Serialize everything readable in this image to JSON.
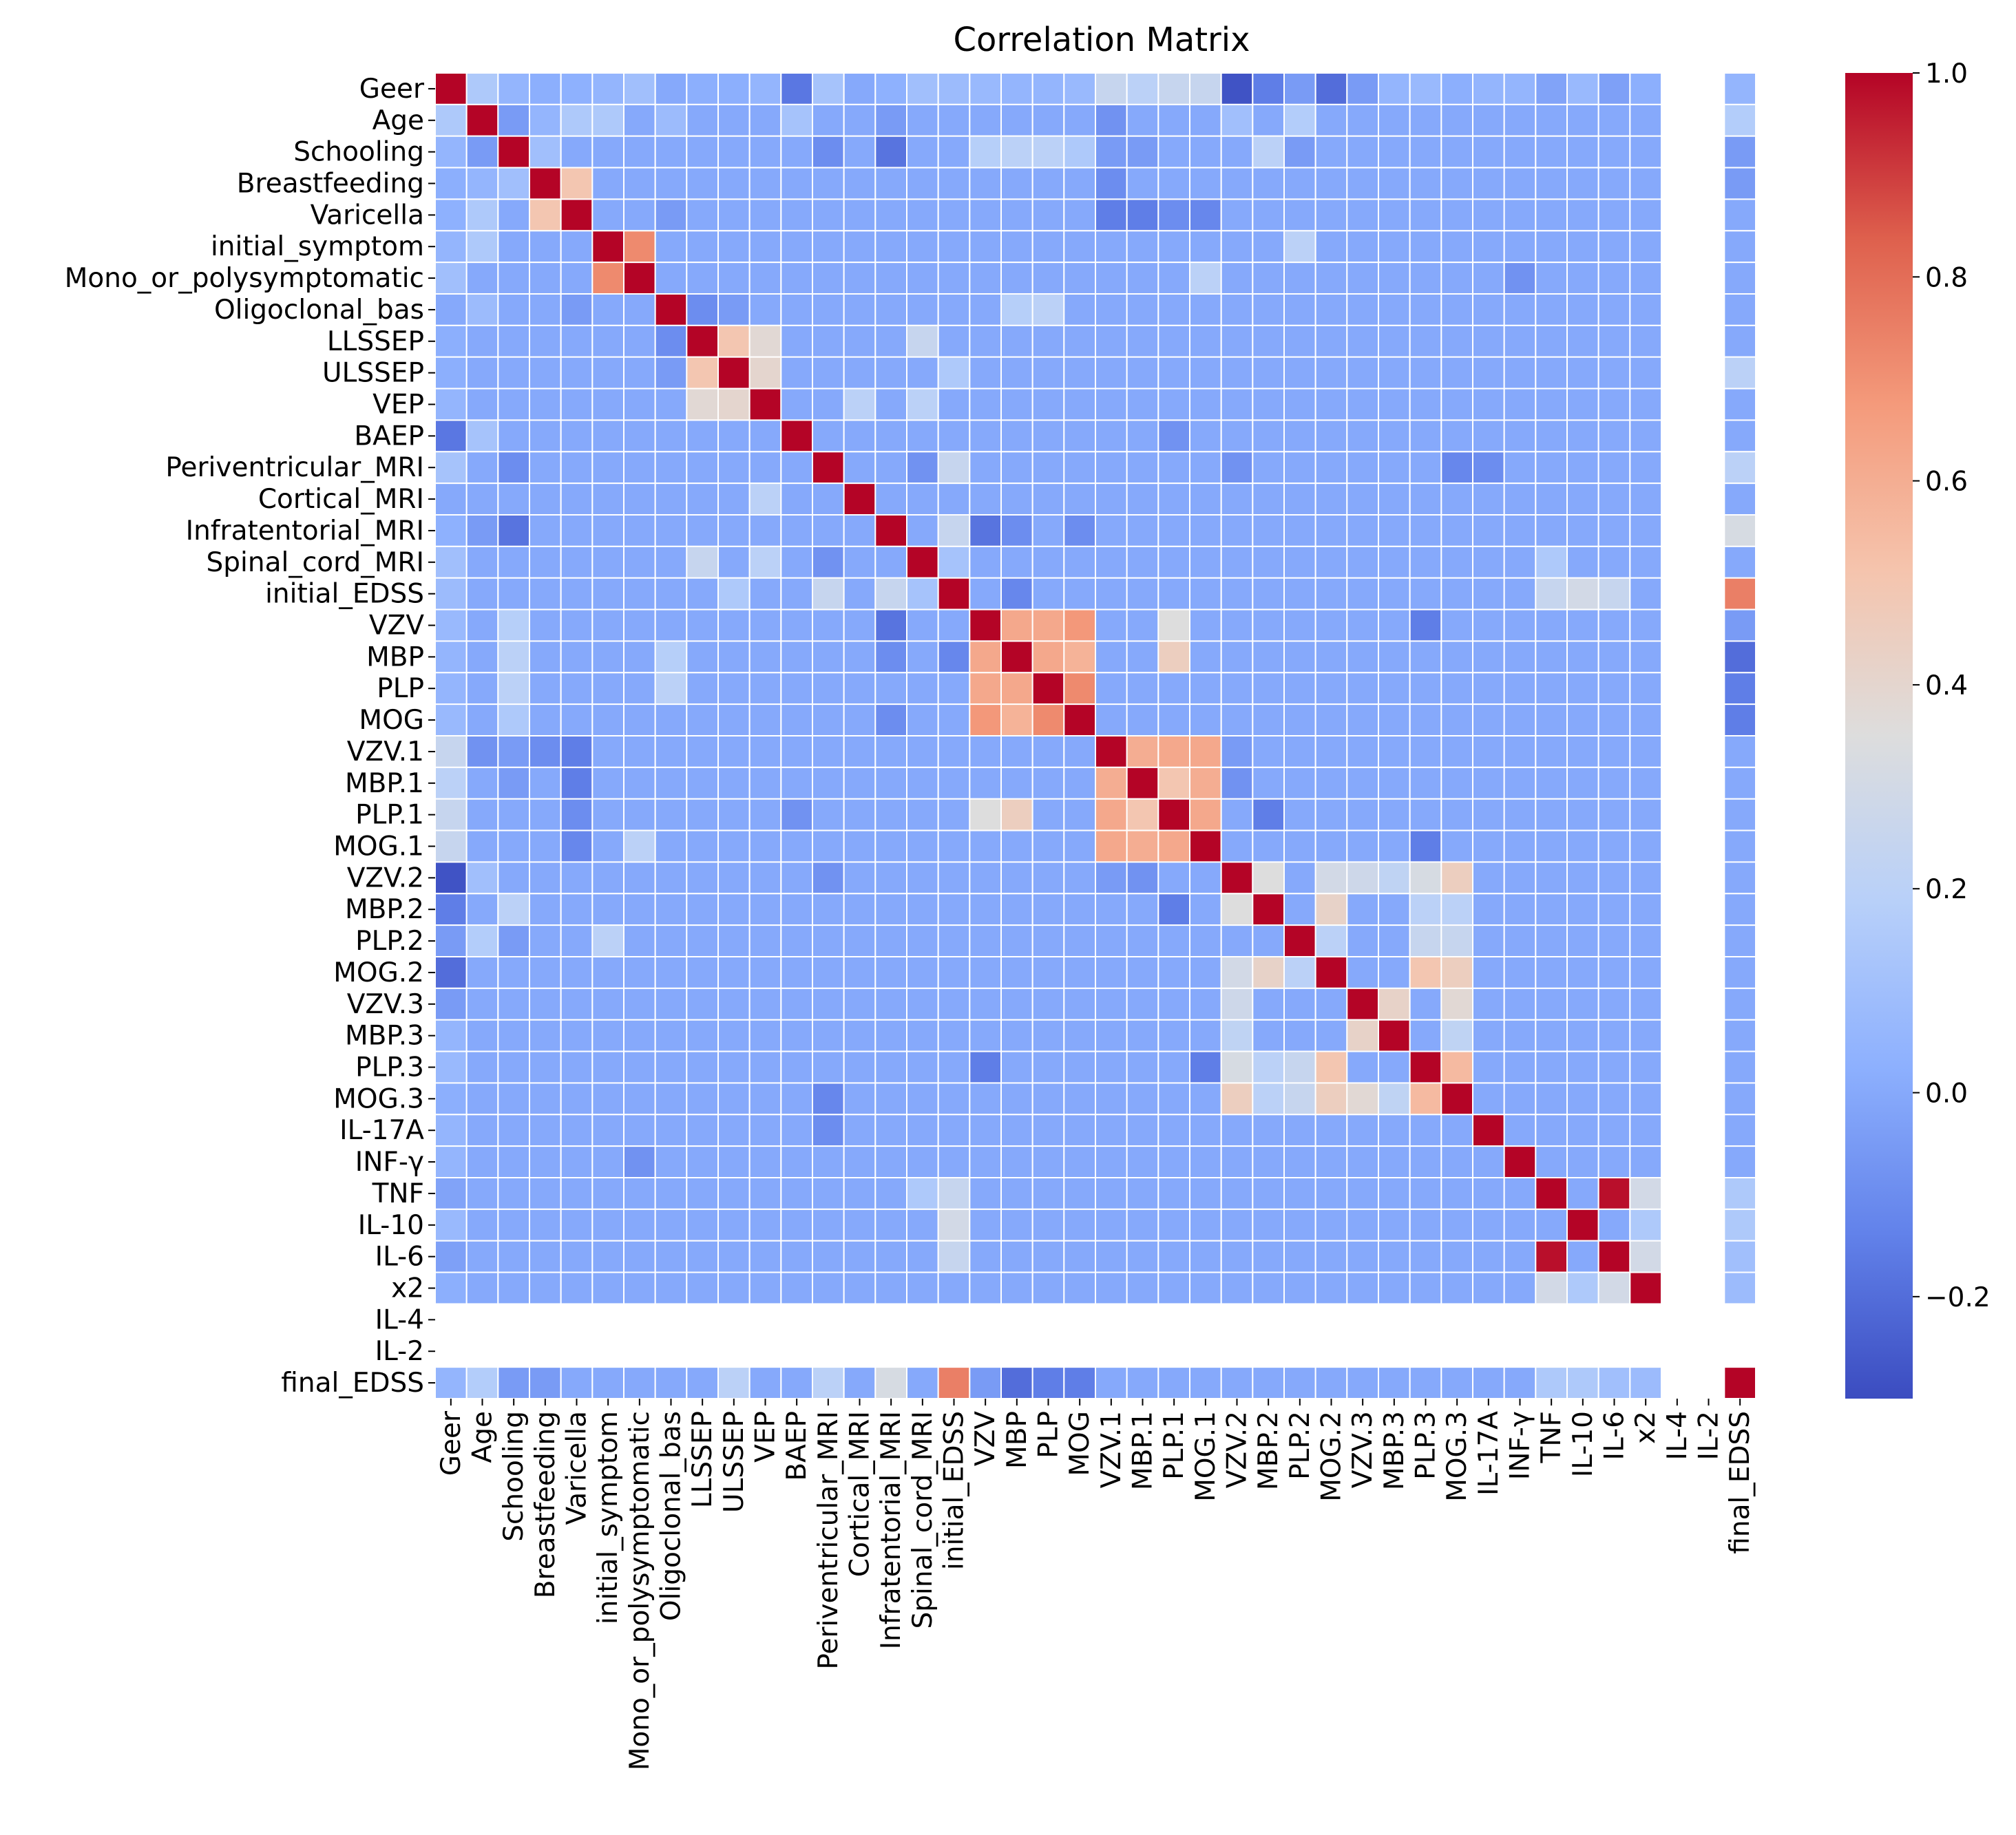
{
  "chart_data": {
    "type": "heatmap",
    "title": "Correlation Matrix",
    "variables": [
      "Geer",
      "Age",
      "Schooling",
      "Breastfeeding",
      "Varicella",
      "initial_symptom",
      "Mono_or_polysymptomatic",
      "Oligoclonal_bas",
      "LLSSEP",
      "ULSSEP",
      "VEP",
      "BAEP",
      "Periventricular_MRI",
      "Cortical_MRI",
      "Infratentorial_MRI",
      "Spinal_cord_MRI",
      "initial_EDSS",
      "VZV",
      "MBP",
      "PLP",
      "MOG",
      "VZV.1",
      "MBP.1",
      "PLP.1",
      "MOG.1",
      "VZV.2",
      "MBP.2",
      "PLP.2",
      "MOG.2",
      "VZV.3",
      "MBP.3",
      "PLP.3",
      "MOG.3",
      "IL-17A",
      "INF-γ",
      "TNF",
      "IL-10",
      "IL-6",
      "x2",
      "IL-4",
      "IL-2",
      "final_EDSS"
    ],
    "nan_variables": [
      "IL-4",
      "IL-2"
    ],
    "default_value": 0.0,
    "diagonal_value": 1.0,
    "pairs": [
      [
        "Geer",
        "Age",
        0.15
      ],
      [
        "Geer",
        "Schooling",
        0.05
      ],
      [
        "Geer",
        "Breastfeeding",
        0.02
      ],
      [
        "Geer",
        "Varicella",
        0.03
      ],
      [
        "Geer",
        "initial_symptom",
        0.05
      ],
      [
        "Geer",
        "Mono_or_polysymptomatic",
        0.1
      ],
      [
        "Geer",
        "Oligoclonal_bas",
        0.0
      ],
      [
        "Geer",
        "LLSSEP",
        0.02
      ],
      [
        "Geer",
        "ULSSEP",
        0.02
      ],
      [
        "Geer",
        "VEP",
        0.05
      ],
      [
        "Geer",
        "BAEP",
        -0.17
      ],
      [
        "Geer",
        "Periventricular_MRI",
        0.12
      ],
      [
        "Geer",
        "Cortical_MRI",
        0.0
      ],
      [
        "Geer",
        "Infratentorial_MRI",
        0.03
      ],
      [
        "Geer",
        "Spinal_cord_MRI",
        0.1
      ],
      [
        "Geer",
        "initial_EDSS",
        0.08
      ],
      [
        "Geer",
        "VZV",
        0.07
      ],
      [
        "Geer",
        "MBP",
        0.05
      ],
      [
        "Geer",
        "PLP",
        0.05
      ],
      [
        "Geer",
        "MOG",
        0.07
      ],
      [
        "Geer",
        "VZV.1",
        0.25
      ],
      [
        "Geer",
        "MBP.1",
        0.2
      ],
      [
        "Geer",
        "PLP.1",
        0.25
      ],
      [
        "Geer",
        "MOG.1",
        0.25
      ],
      [
        "Geer",
        "VZV.2",
        -0.28
      ],
      [
        "Geer",
        "MBP.2",
        -0.15
      ],
      [
        "Geer",
        "PLP.2",
        -0.05
      ],
      [
        "Geer",
        "MOG.2",
        -0.2
      ],
      [
        "Geer",
        "VZV.3",
        -0.05
      ],
      [
        "Geer",
        "MBP.3",
        0.05
      ],
      [
        "Geer",
        "PLP.3",
        0.07
      ],
      [
        "Geer",
        "MOG.3",
        0.02
      ],
      [
        "Geer",
        "IL-17A",
        0.05
      ],
      [
        "Geer",
        "INF-γ",
        0.05
      ],
      [
        "Geer",
        "TNF",
        -0.02
      ],
      [
        "Geer",
        "IL-10",
        0.07
      ],
      [
        "Geer",
        "IL-6",
        -0.03
      ],
      [
        "Geer",
        "x2",
        0.02
      ],
      [
        "Geer",
        "final_EDSS",
        0.05
      ],
      [
        "Age",
        "Schooling",
        -0.05
      ],
      [
        "Age",
        "Breastfeeding",
        0.05
      ],
      [
        "Age",
        "Varicella",
        0.15
      ],
      [
        "Age",
        "initial_symptom",
        0.15
      ],
      [
        "Age",
        "Oligoclonal_bas",
        0.08
      ],
      [
        "Age",
        "BAEP",
        0.12
      ],
      [
        "Age",
        "Infratentorial_MRI",
        -0.05
      ],
      [
        "Age",
        "VZV.1",
        -0.08
      ],
      [
        "Age",
        "VZV.2",
        0.1
      ],
      [
        "Age",
        "PLP.2",
        0.17
      ],
      [
        "Age",
        "final_EDSS",
        0.17
      ],
      [
        "Schooling",
        "Breastfeeding",
        0.1
      ],
      [
        "Schooling",
        "Periventricular_MRI",
        -0.1
      ],
      [
        "Schooling",
        "Infratentorial_MRI",
        -0.18
      ],
      [
        "Schooling",
        "VZV",
        0.18
      ],
      [
        "Schooling",
        "MBP",
        0.2
      ],
      [
        "Schooling",
        "PLP",
        0.2
      ],
      [
        "Schooling",
        "MOG",
        0.15
      ],
      [
        "Schooling",
        "VZV.1",
        -0.05
      ],
      [
        "Schooling",
        "MBP.1",
        -0.05
      ],
      [
        "Schooling",
        "MBP.2",
        0.2
      ],
      [
        "Schooling",
        "PLP.2",
        -0.05
      ],
      [
        "Schooling",
        "final_EDSS",
        -0.05
      ],
      [
        "Breastfeeding",
        "Varicella",
        0.5
      ],
      [
        "Breastfeeding",
        "VZV.1",
        -0.1
      ],
      [
        "Breastfeeding",
        "final_EDSS",
        -0.05
      ],
      [
        "Varicella",
        "Oligoclonal_bas",
        -0.05
      ],
      [
        "Varicella",
        "VZV.1",
        -0.15
      ],
      [
        "Varicella",
        "MBP.1",
        -0.15
      ],
      [
        "Varicella",
        "PLP.1",
        -0.1
      ],
      [
        "Varicella",
        "MOG.1",
        -0.12
      ],
      [
        "initial_symptom",
        "Mono_or_polysymptomatic",
        0.72
      ],
      [
        "initial_symptom",
        "PLP.2",
        0.2
      ],
      [
        "Mono_or_polysymptomatic",
        "MOG.1",
        0.2
      ],
      [
        "Mono_or_polysymptomatic",
        "INF-γ",
        -0.08
      ],
      [
        "Oligoclonal_bas",
        "LLSSEP",
        -0.1
      ],
      [
        "Oligoclonal_bas",
        "ULSSEP",
        -0.05
      ],
      [
        "Oligoclonal_bas",
        "MBP",
        0.18
      ],
      [
        "Oligoclonal_bas",
        "PLP",
        0.2
      ],
      [
        "LLSSEP",
        "ULSSEP",
        0.5
      ],
      [
        "LLSSEP",
        "VEP",
        0.38
      ],
      [
        "LLSSEP",
        "Spinal_cord_MRI",
        0.25
      ],
      [
        "ULSSEP",
        "VEP",
        0.4
      ],
      [
        "ULSSEP",
        "initial_EDSS",
        0.15
      ],
      [
        "ULSSEP",
        "final_EDSS",
        0.2
      ],
      [
        "VEP",
        "Cortical_MRI",
        0.2
      ],
      [
        "VEP",
        "Spinal_cord_MRI",
        0.2
      ],
      [
        "BAEP",
        "PLP.1",
        -0.08
      ],
      [
        "Periventricular_MRI",
        "Spinal_cord_MRI",
        -0.08
      ],
      [
        "Periventricular_MRI",
        "initial_EDSS",
        0.25
      ],
      [
        "Periventricular_MRI",
        "VZV.2",
        -0.08
      ],
      [
        "Periventricular_MRI",
        "MOG.3",
        -0.12
      ],
      [
        "Periventricular_MRI",
        "IL-17A",
        -0.1
      ],
      [
        "Periventricular_MRI",
        "final_EDSS",
        0.2
      ],
      [
        "Infratentorial_MRI",
        "initial_EDSS",
        0.25
      ],
      [
        "Infratentorial_MRI",
        "VZV",
        -0.18
      ],
      [
        "Infratentorial_MRI",
        "MBP",
        -0.1
      ],
      [
        "Infratentorial_MRI",
        "MOG",
        -0.1
      ],
      [
        "Infratentorial_MRI",
        "final_EDSS",
        0.32
      ],
      [
        "Spinal_cord_MRI",
        "initial_EDSS",
        0.12
      ],
      [
        "Spinal_cord_MRI",
        "TNF",
        0.15
      ],
      [
        "initial_EDSS",
        "MBP",
        -0.12
      ],
      [
        "initial_EDSS",
        "TNF",
        0.25
      ],
      [
        "initial_EDSS",
        "IL-10",
        0.3
      ],
      [
        "initial_EDSS",
        "IL-6",
        0.25
      ],
      [
        "initial_EDSS",
        "final_EDSS",
        0.75
      ],
      [
        "VZV",
        "MBP",
        0.62
      ],
      [
        "VZV",
        "PLP",
        0.62
      ],
      [
        "VZV",
        "MOG",
        0.68
      ],
      [
        "VZV",
        "PLP.1",
        0.35
      ],
      [
        "VZV",
        "PLP.3",
        -0.15
      ],
      [
        "VZV",
        "final_EDSS",
        -0.05
      ],
      [
        "MBP",
        "PLP",
        0.62
      ],
      [
        "MBP",
        "MOG",
        0.58
      ],
      [
        "MBP",
        "PLP.1",
        0.45
      ],
      [
        "MBP",
        "final_EDSS",
        -0.2
      ],
      [
        "PLP",
        "MOG",
        0.72
      ],
      [
        "PLP",
        "final_EDSS",
        -0.15
      ],
      [
        "MOG",
        "final_EDSS",
        -0.15
      ],
      [
        "VZV.1",
        "MBP.1",
        0.6
      ],
      [
        "VZV.1",
        "PLP.1",
        0.62
      ],
      [
        "VZV.1",
        "MOG.1",
        0.62
      ],
      [
        "VZV.1",
        "VZV.2",
        -0.05
      ],
      [
        "MBP.1",
        "PLP.1",
        0.5
      ],
      [
        "MBP.1",
        "MOG.1",
        0.6
      ],
      [
        "MBP.1",
        "VZV.2",
        -0.08
      ],
      [
        "PLP.1",
        "MOG.1",
        0.62
      ],
      [
        "PLP.1",
        "MBP.2",
        -0.15
      ],
      [
        "MOG.1",
        "PLP.3",
        -0.15
      ],
      [
        "VZV.2",
        "MBP.2",
        0.35
      ],
      [
        "VZV.2",
        "MOG.2",
        0.3
      ],
      [
        "VZV.2",
        "VZV.3",
        0.28
      ],
      [
        "VZV.2",
        "MBP.3",
        0.22
      ],
      [
        "VZV.2",
        "PLP.3",
        0.32
      ],
      [
        "VZV.2",
        "MOG.3",
        0.45
      ],
      [
        "MBP.2",
        "MOG.2",
        0.42
      ],
      [
        "MBP.2",
        "PLP.3",
        0.2
      ],
      [
        "MBP.2",
        "MOG.3",
        0.2
      ],
      [
        "PLP.2",
        "MOG.2",
        0.2
      ],
      [
        "PLP.2",
        "PLP.3",
        0.25
      ],
      [
        "PLP.2",
        "MOG.3",
        0.25
      ],
      [
        "MOG.2",
        "PLP.3",
        0.5
      ],
      [
        "MOG.2",
        "MOG.3",
        0.45
      ],
      [
        "VZV.3",
        "MBP.3",
        0.42
      ],
      [
        "VZV.3",
        "MOG.3",
        0.38
      ],
      [
        "MBP.3",
        "MOG.3",
        0.22
      ],
      [
        "PLP.3",
        "MOG.3",
        0.55
      ],
      [
        "TNF",
        "IL-6",
        0.98
      ],
      [
        "TNF",
        "x2",
        0.3
      ],
      [
        "TNF",
        "final_EDSS",
        0.15
      ],
      [
        "IL-10",
        "x2",
        0.15
      ],
      [
        "IL-10",
        "final_EDSS",
        0.15
      ],
      [
        "IL-6",
        "x2",
        0.3
      ],
      [
        "IL-6",
        "final_EDSS",
        0.1
      ],
      [
        "x2",
        "final_EDSS",
        0.08
      ]
    ],
    "colorbar": {
      "min": -0.3,
      "max": 1.0,
      "ticks": [
        -0.2,
        0.0,
        0.2,
        0.4,
        0.6,
        0.8,
        1.0
      ],
      "colormap": "coolwarm"
    }
  }
}
